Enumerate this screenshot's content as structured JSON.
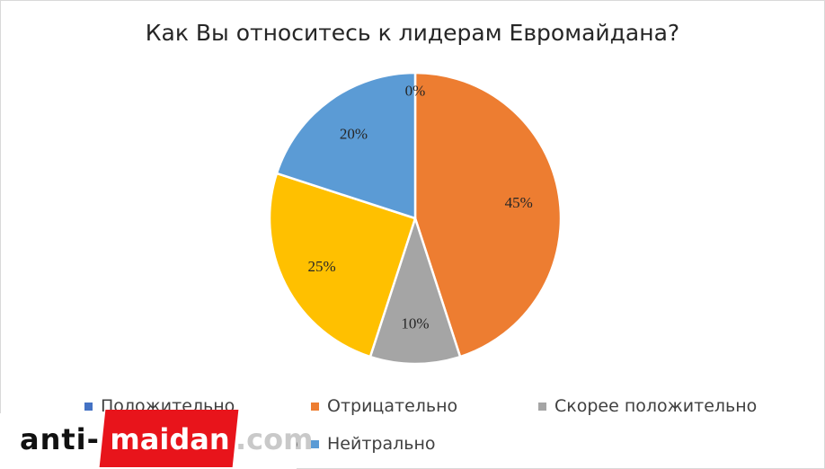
{
  "chart_data": {
    "type": "pie",
    "title": "Как Вы относитесь к лидерам Евромайдана?",
    "categories": [
      "Положительно",
      "Отрицательно",
      "Скорее положительно",
      "Скорее отрицательно",
      "Нейтрально"
    ],
    "values": [
      0,
      45,
      10,
      25,
      20
    ],
    "data_labels": [
      "0%",
      "45%",
      "10%",
      "25%",
      "20%"
    ],
    "colors": [
      "#4472c4",
      "#ed7d31",
      "#a5a5a5",
      "#ffc000",
      "#5b9bd5"
    ],
    "legend_position": "bottom"
  },
  "legend": {
    "items": [
      {
        "label": "Положительно",
        "color": "#4472c4"
      },
      {
        "label": "Отрицательно",
        "color": "#ed7d31"
      },
      {
        "label": "Скорее положительно",
        "color": "#a5a5a5"
      },
      {
        "label": "Скорее отрицательно",
        "color": "#ffc000"
      },
      {
        "label": "Нейтрально",
        "color": "#5b9bd5"
      }
    ]
  },
  "watermark": {
    "anti": "anti-",
    "maidan": "maidan",
    "com": ".com"
  }
}
